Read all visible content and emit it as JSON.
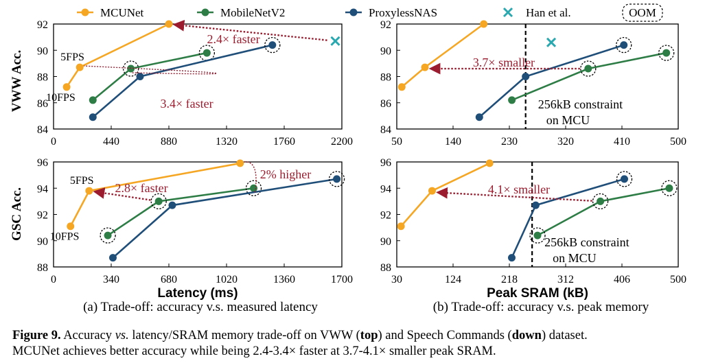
{
  "legend": {
    "items": [
      {
        "label": "MCUNet",
        "color": "#f5a623",
        "marker": "circle"
      },
      {
        "label": "MobileNetV2",
        "color": "#2e7d46",
        "marker": "circle"
      },
      {
        "label": "ProxylessNAS",
        "color": "#1f4e79",
        "marker": "circle"
      },
      {
        "label": "Han et al.",
        "color": "#2aa8b0",
        "marker": "x"
      },
      {
        "label": "OOM",
        "marker": "dashed-circle"
      }
    ]
  },
  "row_labels": {
    "top": "VWW Acc.",
    "bottom": "GSC Acc."
  },
  "subcaptions": {
    "a": "(a) Trade-off: accuracy v.s. measured latency",
    "b": "(b) Trade-off: accuracy v.s. peak memory"
  },
  "caption": {
    "label": "Figure 9.",
    "line1_a": "Accuracy ",
    "line1_vs": "vs.",
    "line1_b": " latency/SRAM memory trade-off on VWW (",
    "line1_top": "top",
    "line1_c": ") and Speech Commands (",
    "line1_down": "down",
    "line1_d": ") dataset.",
    "line2": "MCUNet achieves better accuracy while being 2.4-3.4× faster at 3.7-4.1× smaller peak SRAM."
  },
  "chart_data": [
    {
      "id": "vww-latency",
      "type": "line",
      "xlabel": "",
      "ylabel": "VWW Acc.",
      "xlim": [
        0,
        2200
      ],
      "ylim": [
        84,
        92
      ],
      "xticks": [
        0,
        440,
        880,
        1320,
        1760,
        2200
      ],
      "yticks": [
        84,
        86,
        88,
        90,
        92
      ],
      "series": [
        {
          "name": "MCUNet",
          "color": "#f5a623",
          "points": [
            [
              100,
              87.2
            ],
            [
              200,
              88.7
            ],
            [
              880,
              92.0
            ]
          ],
          "oom": [
            false,
            false,
            false
          ]
        },
        {
          "name": "MobileNetV2",
          "color": "#2e7d46",
          "points": [
            [
              300,
              86.2
            ],
            [
              590,
              88.6
            ],
            [
              1170,
              89.8
            ]
          ],
          "oom": [
            false,
            true,
            true
          ]
        },
        {
          "name": "ProxylessNAS",
          "color": "#1f4e79",
          "points": [
            [
              300,
              84.9
            ],
            [
              660,
              88.0
            ],
            [
              1670,
              90.4
            ]
          ],
          "oom": [
            false,
            false,
            true
          ]
        },
        {
          "name": "Han et al.",
          "color": "#2aa8b0",
          "marker": "x",
          "points": [
            [
              2150,
              90.7
            ]
          ]
        }
      ],
      "point_labels": [
        {
          "text": "5FPS",
          "x": 200,
          "y": 88.7
        },
        {
          "text": "10FPS",
          "x": 100,
          "y": 87.2
        }
      ],
      "annotations": [
        {
          "text": "2.4× faster",
          "from": [
            2150,
            90.7
          ],
          "to": [
            880,
            92.0
          ]
        },
        {
          "text": "3.4× faster",
          "from": [
            590,
            88.6
          ],
          "to": [
            200,
            88.7
          ]
        }
      ]
    },
    {
      "id": "vww-sram",
      "type": "line",
      "xlabel": "",
      "ylabel": "",
      "xlim": [
        50,
        500
      ],
      "ylim": [
        84,
        92
      ],
      "xticks": [
        50,
        140,
        230,
        320,
        410,
        500
      ],
      "yticks": [
        84,
        86,
        88,
        90,
        92
      ],
      "series": [
        {
          "name": "MCUNet",
          "color": "#f5a623",
          "points": [
            [
              58,
              87.2
            ],
            [
              95,
              88.7
            ],
            [
              189,
              92.0
            ]
          ],
          "oom": [
            false,
            false,
            false
          ]
        },
        {
          "name": "MobileNetV2",
          "color": "#2e7d46",
          "points": [
            [
              234,
              86.2
            ],
            [
              356,
              88.6
            ],
            [
              481,
              89.8
            ]
          ],
          "oom": [
            false,
            true,
            true
          ]
        },
        {
          "name": "ProxylessNAS",
          "color": "#1f4e79",
          "points": [
            [
              182,
              84.9
            ],
            [
              256,
              88.0
            ],
            [
              413,
              90.4
            ]
          ],
          "oom": [
            false,
            false,
            true
          ]
        },
        {
          "name": "Han et al.",
          "color": "#2aa8b0",
          "marker": "x",
          "points": [
            [
              297,
              90.6
            ]
          ]
        }
      ],
      "constraint": {
        "x": 256,
        "label_line1": "256kB constraint",
        "label_line2": "on MCU"
      },
      "annotations": [
        {
          "text": "3.7× smaller",
          "from": [
            356,
            88.6
          ],
          "to": [
            95,
            88.6
          ]
        }
      ]
    },
    {
      "id": "gsc-latency",
      "type": "line",
      "xlabel": "Latency (ms)",
      "ylabel": "GSC Acc.",
      "xlim": [
        0,
        1700
      ],
      "ylim": [
        88,
        96
      ],
      "xticks": [
        0,
        340,
        680,
        1020,
        1360,
        1700
      ],
      "yticks": [
        88,
        90,
        92,
        94,
        96
      ],
      "series": [
        {
          "name": "MCUNet",
          "color": "#f5a623",
          "points": [
            [
              100,
              91.1
            ],
            [
              210,
              93.8
            ],
            [
              1100,
              95.9
            ]
          ],
          "oom": [
            false,
            false,
            false
          ]
        },
        {
          "name": "MobileNetV2",
          "color": "#2e7d46",
          "points": [
            [
              320,
              90.4
            ],
            [
              620,
              93.0
            ],
            [
              1180,
              94.0
            ]
          ],
          "oom": [
            true,
            true,
            true
          ]
        },
        {
          "name": "ProxylessNAS",
          "color": "#1f4e79",
          "points": [
            [
              350,
              88.7
            ],
            [
              700,
              92.7
            ],
            [
              1670,
              94.7
            ]
          ],
          "oom": [
            false,
            false,
            true
          ]
        }
      ],
      "point_labels": [
        {
          "text": "5FPS",
          "x": 210,
          "y": 93.8
        },
        {
          "text": "10FPS",
          "x": 100,
          "y": 91.1
        }
      ],
      "annotations": [
        {
          "text": "2.8× faster",
          "from": [
            620,
            93.0
          ],
          "to": [
            210,
            93.8
          ]
        },
        {
          "text": "2% higher",
          "from": [
            1180,
            94.0
          ],
          "to": [
            1100,
            95.9
          ]
        }
      ]
    },
    {
      "id": "gsc-sram",
      "type": "line",
      "xlabel": "Peak SRAM (kB)",
      "ylabel": "",
      "xlim": [
        30,
        500
      ],
      "ylim": [
        88,
        96
      ],
      "xticks": [
        30,
        124,
        218,
        312,
        406,
        500
      ],
      "yticks": [
        88,
        90,
        92,
        94,
        96
      ],
      "series": [
        {
          "name": "MCUNet",
          "color": "#f5a623",
          "points": [
            [
              37,
              91.1
            ],
            [
              89,
              93.8
            ],
            [
              185,
              95.9
            ]
          ],
          "oom": [
            false,
            false,
            false
          ]
        },
        {
          "name": "MobileNetV2",
          "color": "#2e7d46",
          "points": [
            [
              265,
              90.4
            ],
            [
              370,
              93.0
            ],
            [
              485,
              94.0
            ]
          ],
          "oom": [
            true,
            true,
            true
          ]
        },
        {
          "name": "ProxylessNAS",
          "color": "#1f4e79",
          "points": [
            [
              222,
              88.7
            ],
            [
              262,
              92.7
            ],
            [
              410,
              94.7
            ]
          ],
          "oom": [
            false,
            false,
            true
          ]
        }
      ],
      "constraint": {
        "x": 256,
        "label_line1": "256kB constraint",
        "label_line2": "on MCU"
      },
      "annotations": [
        {
          "text": "4.1× smaller",
          "from": [
            370,
            93.0
          ],
          "to": [
            89,
            93.7
          ]
        }
      ]
    }
  ]
}
